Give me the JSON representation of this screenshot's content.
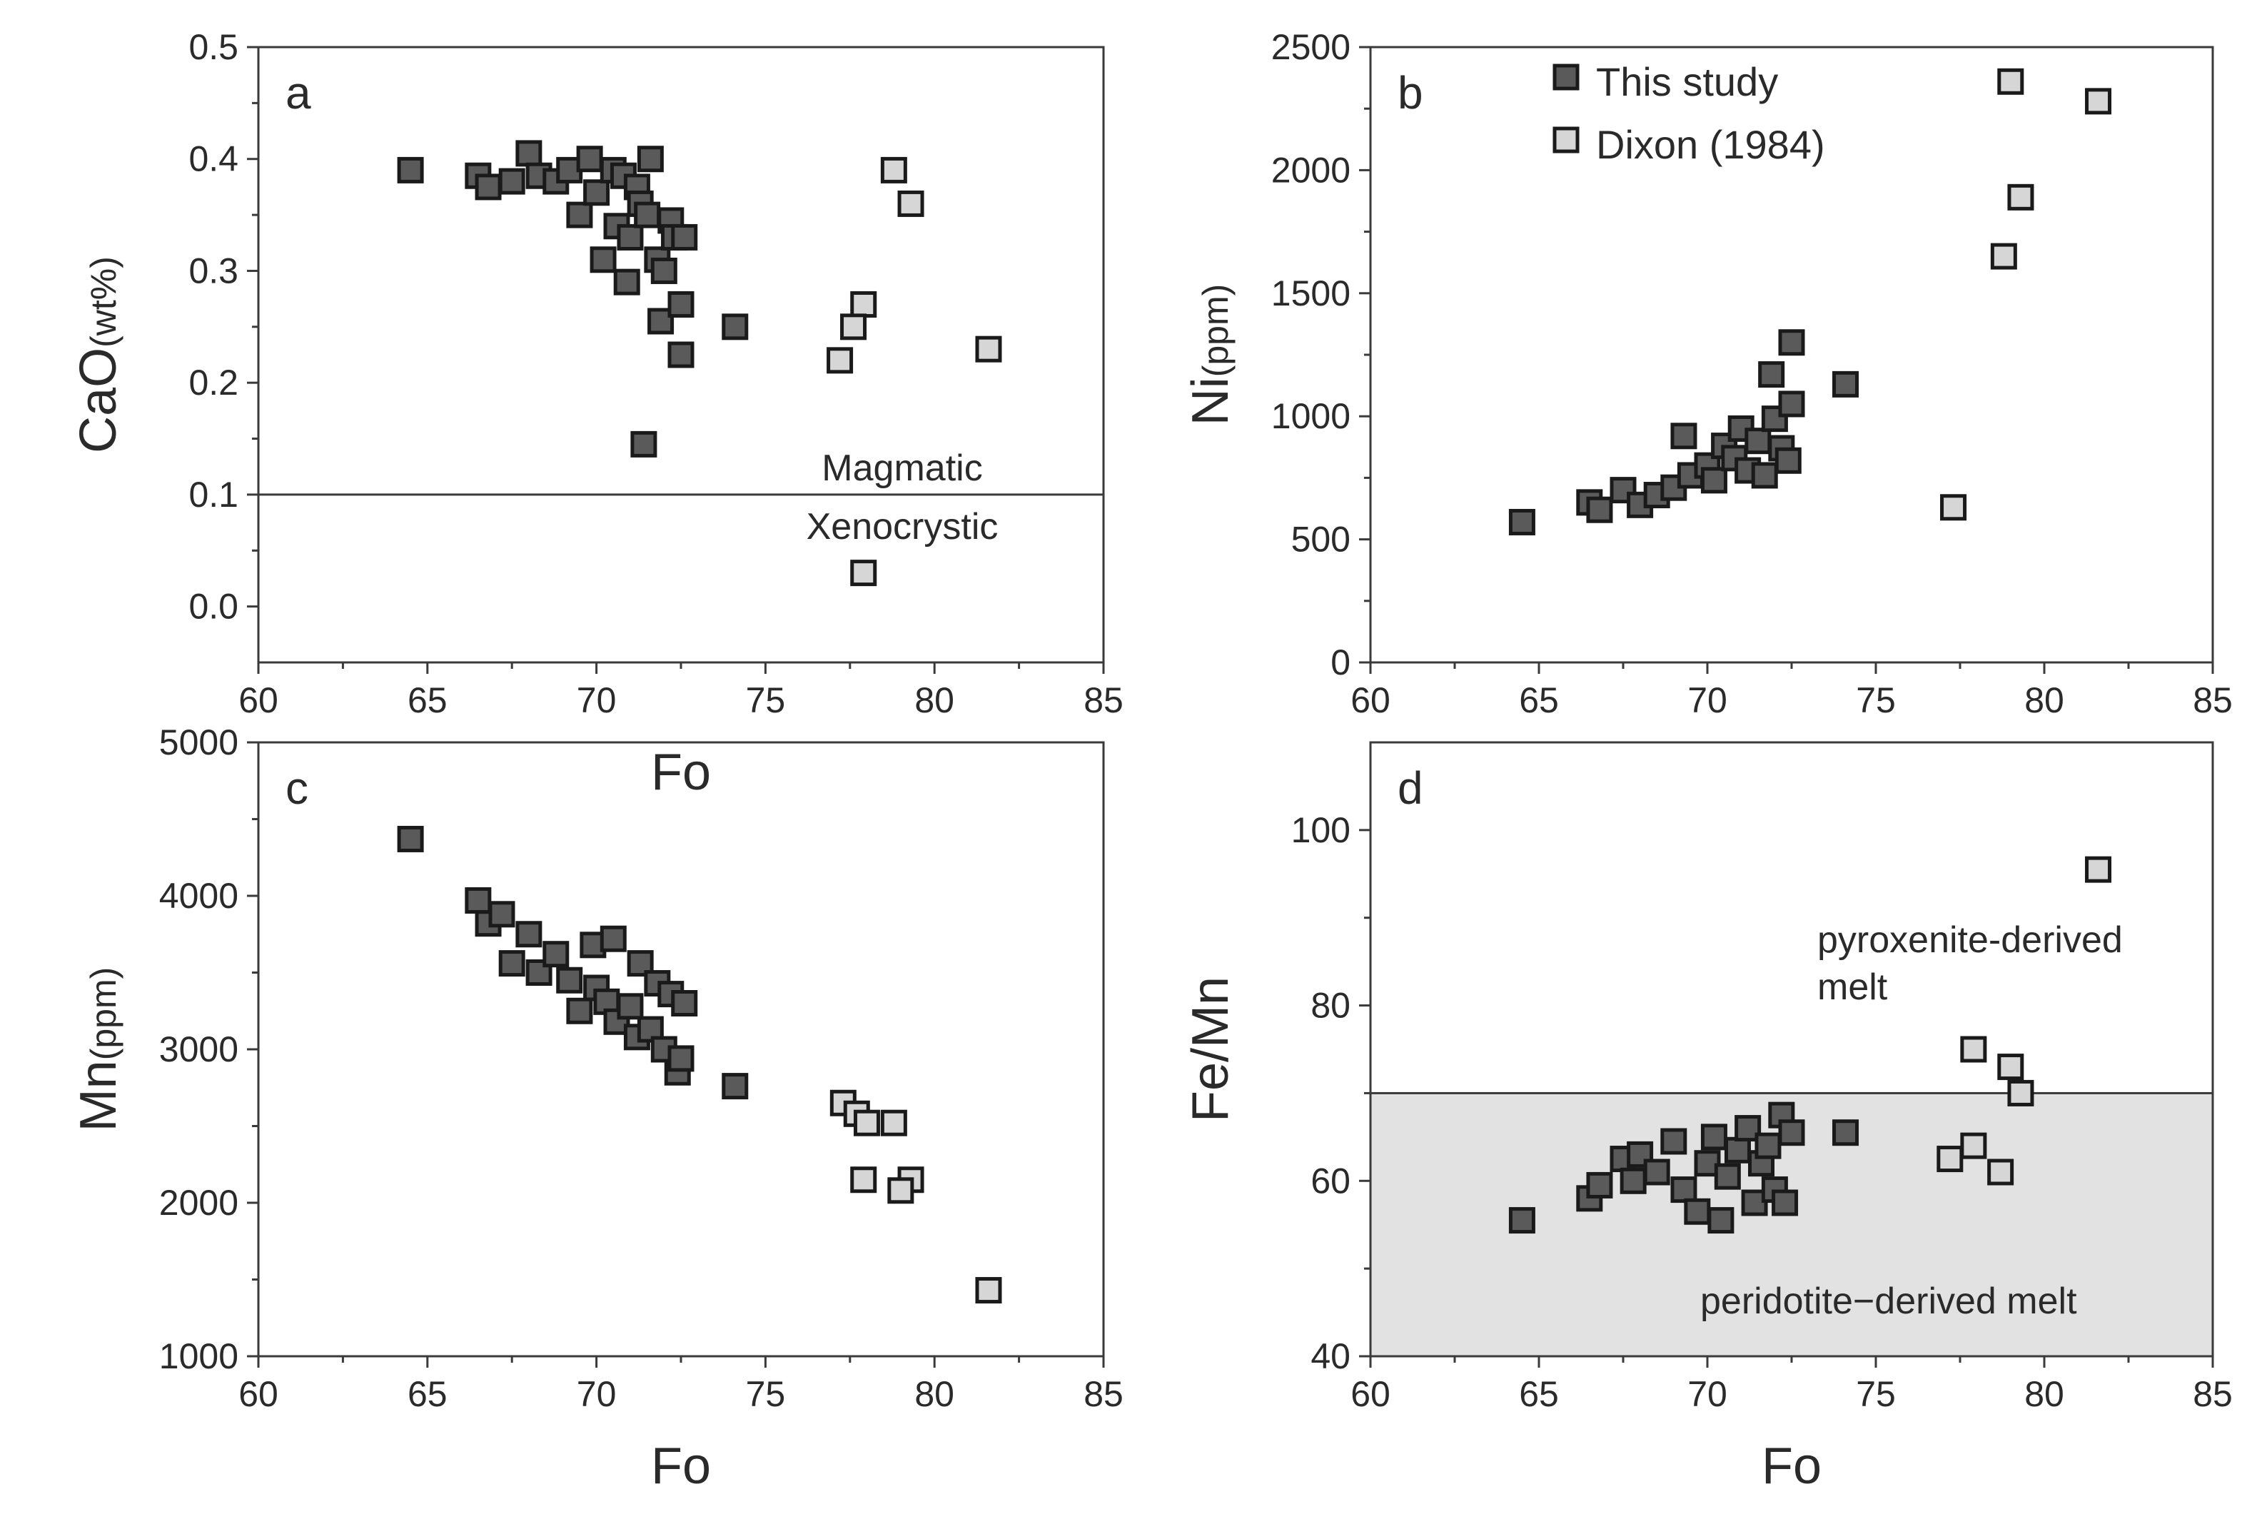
{
  "colors": {
    "this_study": "#5a5a5a",
    "dixon": "#d6d6d6",
    "marker_stroke": "#1a1a1a",
    "peridotite_field": "#e2e2e2",
    "axis": "#3a3a3a",
    "text": "#2a2a2a"
  },
  "legend": {
    "this_study": "This study",
    "dixon": "Dixon (1984)"
  },
  "chart_data": [
    {
      "panel": "a",
      "type": "scatter",
      "xlabel": "Fo",
      "ylabel_main": "CaO",
      "ylabel_unit": "(wt%)",
      "xlim": [
        60,
        85
      ],
      "ylim": [
        -0.05,
        0.5
      ],
      "xticks": [
        "60",
        "65",
        "70",
        "75",
        "80",
        "85"
      ],
      "yticks": [
        "0.0",
        "0.1",
        "0.2",
        "0.3",
        "0.4",
        "0.5"
      ],
      "xtick_values": [
        60,
        65,
        70,
        75,
        80,
        85
      ],
      "ytick_values": [
        0.0,
        0.1,
        0.2,
        0.3,
        0.4,
        0.5
      ],
      "hline": 0.1,
      "annotations": {
        "above": "Magmatic",
        "below": "Xenocrystic"
      },
      "series": [
        {
          "name": "This study",
          "points": [
            [
              64.5,
              0.39
            ],
            [
              66.5,
              0.385
            ],
            [
              66.8,
              0.375
            ],
            [
              67.5,
              0.38
            ],
            [
              68.0,
              0.405
            ],
            [
              68.3,
              0.385
            ],
            [
              68.8,
              0.38
            ],
            [
              69.2,
              0.39
            ],
            [
              69.5,
              0.35
            ],
            [
              69.8,
              0.4
            ],
            [
              70.0,
              0.37
            ],
            [
              70.2,
              0.31
            ],
            [
              70.5,
              0.39
            ],
            [
              70.6,
              0.34
            ],
            [
              70.8,
              0.385
            ],
            [
              70.9,
              0.29
            ],
            [
              71.0,
              0.33
            ],
            [
              71.2,
              0.375
            ],
            [
              71.3,
              0.36
            ],
            [
              71.5,
              0.35
            ],
            [
              71.6,
              0.4
            ],
            [
              71.8,
              0.31
            ],
            [
              71.9,
              0.255
            ],
            [
              72.0,
              0.3
            ],
            [
              72.2,
              0.345
            ],
            [
              72.3,
              0.33
            ],
            [
              72.5,
              0.27
            ],
            [
              72.6,
              0.33
            ],
            [
              72.5,
              0.225
            ],
            [
              74.1,
              0.25
            ],
            [
              71.4,
              0.145
            ]
          ]
        },
        {
          "name": "Dixon (1984)",
          "points": [
            [
              78.8,
              0.39
            ],
            [
              79.3,
              0.36
            ],
            [
              77.9,
              0.27
            ],
            [
              77.6,
              0.25
            ],
            [
              77.2,
              0.22
            ],
            [
              81.6,
              0.23
            ],
            [
              77.9,
              0.03
            ]
          ]
        }
      ]
    },
    {
      "panel": "b",
      "type": "scatter",
      "xlabel": "",
      "ylabel_main": "Ni",
      "ylabel_unit": "(ppm)",
      "xlim": [
        60,
        85
      ],
      "ylim": [
        0,
        2500
      ],
      "xticks": [
        "60",
        "65",
        "70",
        "75",
        "80",
        "85"
      ],
      "yticks": [
        "0",
        "500",
        "1000",
        "1500",
        "2000",
        "2500"
      ],
      "xtick_values": [
        60,
        65,
        70,
        75,
        80,
        85
      ],
      "ytick_values": [
        0,
        500,
        1000,
        1500,
        2000,
        2500
      ],
      "series": [
        {
          "name": "This study",
          "points": [
            [
              64.5,
              570
            ],
            [
              66.5,
              650
            ],
            [
              66.8,
              620
            ],
            [
              67.5,
              700
            ],
            [
              68.0,
              640
            ],
            [
              68.5,
              680
            ],
            [
              69.0,
              710
            ],
            [
              69.3,
              920
            ],
            [
              69.5,
              760
            ],
            [
              70.0,
              800
            ],
            [
              70.2,
              740
            ],
            [
              70.5,
              880
            ],
            [
              70.8,
              830
            ],
            [
              71.0,
              950
            ],
            [
              71.2,
              780
            ],
            [
              71.5,
              900
            ],
            [
              71.7,
              760
            ],
            [
              71.9,
              1170
            ],
            [
              72.0,
              990
            ],
            [
              72.2,
              870
            ],
            [
              72.4,
              820
            ],
            [
              72.5,
              1300
            ],
            [
              72.5,
              1050
            ],
            [
              74.1,
              1130
            ]
          ]
        },
        {
          "name": "Dixon (1984)",
          "points": [
            [
              79.0,
              2360
            ],
            [
              81.6,
              2280
            ],
            [
              79.3,
              1890
            ],
            [
              78.8,
              1650
            ],
            [
              77.3,
              630
            ]
          ]
        }
      ]
    },
    {
      "panel": "c",
      "type": "scatter",
      "xlabel": "Fo",
      "ylabel_main": "Mn",
      "ylabel_unit": "(ppm)",
      "xlim": [
        60,
        85
      ],
      "ylim": [
        1000,
        5000
      ],
      "xticks": [
        "60",
        "65",
        "70",
        "75",
        "80",
        "85"
      ],
      "yticks": [
        "1000",
        "2000",
        "3000",
        "4000",
        "5000"
      ],
      "xtick_values": [
        60,
        65,
        70,
        75,
        80,
        85
      ],
      "ytick_values": [
        1000,
        2000,
        3000,
        4000,
        5000
      ],
      "series": [
        {
          "name": "This study",
          "points": [
            [
              64.5,
              4370
            ],
            [
              66.5,
              3970
            ],
            [
              66.8,
              3820
            ],
            [
              67.2,
              3880
            ],
            [
              67.5,
              3560
            ],
            [
              68.0,
              3750
            ],
            [
              68.3,
              3500
            ],
            [
              68.8,
              3620
            ],
            [
              69.2,
              3450
            ],
            [
              69.5,
              3250
            ],
            [
              69.9,
              3680
            ],
            [
              70.0,
              3400
            ],
            [
              70.3,
              3310
            ],
            [
              70.5,
              3720
            ],
            [
              70.6,
              3180
            ],
            [
              71.0,
              3280
            ],
            [
              71.2,
              3080
            ],
            [
              71.3,
              3560
            ],
            [
              71.6,
              3130
            ],
            [
              71.8,
              3430
            ],
            [
              72.0,
              3000
            ],
            [
              72.2,
              3360
            ],
            [
              72.4,
              2850
            ],
            [
              72.5,
              2940
            ],
            [
              72.6,
              3300
            ],
            [
              74.1,
              2760
            ]
          ]
        },
        {
          "name": "Dixon (1984)",
          "points": [
            [
              77.3,
              2650
            ],
            [
              77.7,
              2580
            ],
            [
              78.0,
              2520
            ],
            [
              78.8,
              2520
            ],
            [
              77.9,
              2150
            ],
            [
              79.3,
              2150
            ],
            [
              79.0,
              2080
            ],
            [
              81.6,
              1430
            ]
          ]
        }
      ]
    },
    {
      "panel": "d",
      "type": "scatter",
      "xlabel": "Fo",
      "ylabel_main": "Fe/Mn",
      "ylabel_unit": "",
      "xlim": [
        60,
        85
      ],
      "ylim": [
        40,
        110
      ],
      "xticks": [
        "60",
        "65",
        "70",
        "75",
        "80",
        "85"
      ],
      "yticks": [
        "40",
        "60",
        "80",
        "100"
      ],
      "xtick_values": [
        60,
        65,
        70,
        75,
        80,
        85
      ],
      "ytick_values": [
        40,
        60,
        80,
        100
      ],
      "field": {
        "y_from": 40,
        "y_to": 70
      },
      "annotations": {
        "upper_line1": "pyroxenite-derived",
        "upper_line2": "melt",
        "lower": "peridotite−derived  melt"
      },
      "series": [
        {
          "name": "This study",
          "points": [
            [
              64.5,
              55.5
            ],
            [
              66.5,
              58.0
            ],
            [
              66.8,
              59.5
            ],
            [
              67.5,
              62.5
            ],
            [
              67.8,
              60.0
            ],
            [
              68.0,
              63.0
            ],
            [
              68.5,
              61.0
            ],
            [
              69.0,
              64.5
            ],
            [
              69.3,
              59.0
            ],
            [
              69.7,
              56.5
            ],
            [
              70.0,
              62.0
            ],
            [
              70.2,
              65.0
            ],
            [
              70.4,
              55.5
            ],
            [
              70.6,
              60.5
            ],
            [
              70.9,
              63.5
            ],
            [
              71.2,
              66.0
            ],
            [
              71.4,
              57.5
            ],
            [
              71.6,
              62.0
            ],
            [
              71.8,
              64.0
            ],
            [
              72.0,
              59.0
            ],
            [
              72.2,
              67.5
            ],
            [
              72.3,
              57.5
            ],
            [
              72.5,
              65.5
            ],
            [
              74.1,
              65.5
            ]
          ]
        },
        {
          "name": "Dixon (1984)",
          "points": [
            [
              81.6,
              95.5
            ],
            [
              77.9,
              75.0
            ],
            [
              79.0,
              73.0
            ],
            [
              79.3,
              70.0
            ],
            [
              77.9,
              64.0
            ],
            [
              77.2,
              62.5
            ],
            [
              78.7,
              61.0
            ]
          ]
        }
      ]
    }
  ]
}
